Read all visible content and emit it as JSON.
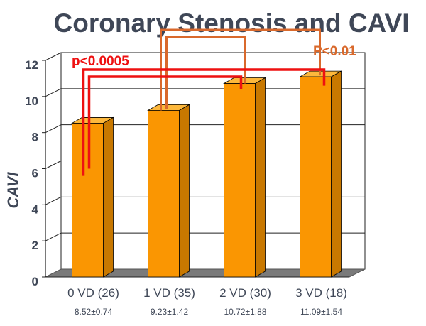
{
  "chart_data": {
    "type": "bar",
    "title": "Coronary Stenosis and CAVI",
    "ylabel": "CAVI",
    "xlabel": "",
    "ylim": [
      0,
      12
    ],
    "yticks": [
      "0",
      "2",
      "4",
      "6",
      "8",
      "10",
      "12"
    ],
    "grid": true,
    "categories": [
      "0 VD (26)",
      "1 VD (35)",
      "2 VD (30)",
      "3 VD (18)"
    ],
    "values": [
      8.52,
      9.23,
      10.72,
      11.09
    ],
    "value_labels": [
      "8.52±0.74",
      "9.23±1.42",
      "10.72±1.88",
      "11.09±1.54"
    ],
    "annotations": [
      {
        "text": "p<0.0005",
        "color": "#ee1111"
      },
      {
        "text": "P<0.01",
        "color": "#d9692c"
      }
    ],
    "colors": {
      "bar_front": "#fa9602",
      "bar_side": "#c87800",
      "bar_top": "#fdb83c",
      "floor": "#7a7a7a",
      "text": "#3f4757"
    }
  }
}
